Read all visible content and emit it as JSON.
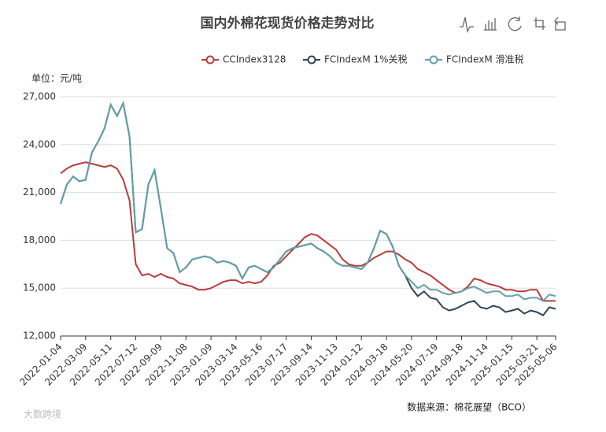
{
  "chart_data": {
    "type": "line",
    "title": "国内外棉花现货价格走势对比",
    "y_unit": "单位：元/吨",
    "source": "数据来源：棉花展望（BCO）",
    "watermark": "大数跨境",
    "categories": [
      "2022-01-04",
      null,
      null,
      null,
      "2022-03-09",
      null,
      null,
      null,
      "2022-05-11",
      null,
      null,
      null,
      "2022-07-12",
      null,
      null,
      null,
      "2022-09-09",
      null,
      null,
      null,
      "2022-11-08",
      null,
      null,
      null,
      "2023-01-09",
      null,
      null,
      null,
      "2023-03-14",
      null,
      null,
      null,
      "2023-05-16",
      null,
      null,
      null,
      "2023-07-17",
      null,
      null,
      null,
      "2023-09-14",
      null,
      null,
      null,
      "2023-11-13",
      null,
      null,
      null,
      "2024-01-12",
      null,
      null,
      null,
      "2024-03-18",
      null,
      null,
      null,
      "2024-05-20",
      null,
      null,
      null,
      "2024-07-19",
      null,
      null,
      null,
      "2024-09-18",
      null,
      null,
      null,
      "2024-11-14",
      null,
      null,
      null,
      "2025-01-15",
      null,
      null,
      null,
      "2025-03-21",
      null,
      null,
      "2025-05-06"
    ],
    "series": [
      {
        "name": "CCIndex3128",
        "color": "#b83b3b",
        "values": [
          22200,
          22500,
          22700,
          22800,
          22900,
          22800,
          22700,
          22600,
          22700,
          22500,
          21800,
          20500,
          16500,
          15800,
          15900,
          15700,
          15900,
          15700,
          15600,
          15300,
          15200,
          15100,
          14900,
          14900,
          15000,
          15200,
          15400,
          15500,
          15500,
          15300,
          15400,
          15300,
          15400,
          15800,
          16400,
          16600,
          17000,
          17400,
          17800,
          18200,
          18400,
          18300,
          18000,
          17700,
          17400,
          16800,
          16500,
          16400,
          16400,
          16600,
          16900,
          17100,
          17300,
          17300,
          17100,
          16800,
          16600,
          16200,
          16000,
          15800,
          15500,
          15200,
          14900,
          14700,
          14800,
          15100,
          15600,
          15500,
          15300,
          15200,
          15100,
          14900,
          14900,
          14800,
          14800,
          14900,
          14900,
          14200,
          14200,
          14200
        ]
      },
      {
        "name": "FCIndexM 1%关税",
        "color": "#2f4554",
        "values": [
          20300,
          21500,
          22000,
          21700,
          21800,
          23500,
          24200,
          25000,
          26500,
          25800,
          26600,
          24500,
          18500,
          18700,
          21500,
          22400,
          20000,
          17500,
          17200,
          16000,
          16300,
          16800,
          16900,
          17000,
          16900,
          16600,
          16700,
          16600,
          16400,
          15600,
          16300,
          16400,
          16200,
          16000,
          16300,
          16800,
          17300,
          17500,
          17600,
          17700,
          17800,
          17500,
          17300,
          17000,
          16600,
          16400,
          16400,
          16300,
          16200,
          16600,
          17500,
          18600,
          18400,
          17600,
          16400,
          15800,
          15000,
          14500,
          14800,
          14400,
          14300,
          13800,
          13600,
          13700,
          13900,
          14100,
          14200,
          13800,
          13700,
          13900,
          13800,
          13500,
          13600,
          13700,
          13400,
          13600,
          13500,
          13300,
          13800,
          13700
        ]
      },
      {
        "name": "FCIndexM 滑准税",
        "color": "#61a0a8",
        "values": [
          20300,
          21500,
          22000,
          21700,
          21800,
          23500,
          24200,
          25000,
          26500,
          25800,
          26600,
          24500,
          18500,
          18700,
          21500,
          22400,
          20000,
          17500,
          17200,
          16000,
          16300,
          16800,
          16900,
          17000,
          16900,
          16600,
          16700,
          16600,
          16400,
          15600,
          16300,
          16400,
          16200,
          16000,
          16300,
          16800,
          17300,
          17500,
          17600,
          17700,
          17800,
          17500,
          17300,
          17000,
          16600,
          16400,
          16400,
          16300,
          16200,
          16600,
          17500,
          18600,
          18400,
          17600,
          16400,
          15800,
          15400,
          15000,
          15200,
          14900,
          14900,
          14700,
          14600,
          14700,
          14800,
          15000,
          15100,
          14900,
          14700,
          14800,
          14800,
          14500,
          14500,
          14600,
          14300,
          14400,
          14400,
          14200,
          14600,
          14500
        ]
      }
    ],
    "ylim": [
      12000,
      27000
    ],
    "yticks": [
      {
        "value": 12000,
        "label": "12,000"
      },
      {
        "value": 15000,
        "label": "15,000"
      },
      {
        "value": 18000,
        "label": "18,000"
      },
      {
        "value": 21000,
        "label": "21,000"
      },
      {
        "value": 24000,
        "label": "24,000"
      },
      {
        "value": 27000,
        "label": "27,000"
      }
    ],
    "grid": true
  }
}
